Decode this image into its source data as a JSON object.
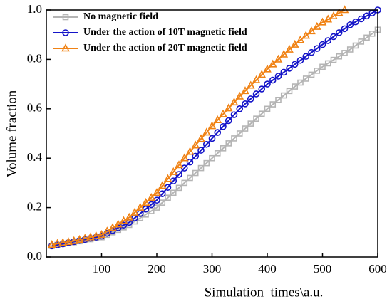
{
  "chart_data": {
    "type": "line",
    "xlabel": "Simulation  times\\a.u.",
    "ylabel": "Volume fraction",
    "x": [
      10,
      20,
      30,
      40,
      50,
      60,
      70,
      80,
      90,
      100,
      110,
      120,
      130,
      140,
      150,
      160,
      170,
      180,
      190,
      200,
      210,
      220,
      230,
      240,
      250,
      260,
      270,
      280,
      290,
      300,
      310,
      320,
      330,
      340,
      350,
      360,
      370,
      380,
      390,
      400,
      410,
      420,
      430,
      440,
      450,
      460,
      470,
      480,
      490,
      500,
      510,
      520,
      530,
      540,
      550,
      560,
      570,
      580,
      590,
      600
    ],
    "series": [
      {
        "name": "No magnetic field",
        "color": "#b4b4b4",
        "marker": "square",
        "values": [
          0.045,
          0.049,
          0.053,
          0.057,
          0.06,
          0.064,
          0.068,
          0.072,
          0.076,
          0.08,
          0.09,
          0.1,
          0.11,
          0.12,
          0.13,
          0.144,
          0.158,
          0.172,
          0.186,
          0.2,
          0.22,
          0.24,
          0.26,
          0.28,
          0.3,
          0.32,
          0.34,
          0.36,
          0.38,
          0.4,
          0.42,
          0.44,
          0.46,
          0.48,
          0.5,
          0.52,
          0.54,
          0.56,
          0.58,
          0.6,
          0.618,
          0.636,
          0.654,
          0.672,
          0.69,
          0.706,
          0.722,
          0.738,
          0.754,
          0.77,
          0.784,
          0.798,
          0.812,
          0.826,
          0.84,
          0.856,
          0.872,
          0.888,
          0.904,
          0.92
        ]
      },
      {
        "name": "Under the action of 10T magnetic field",
        "color": "#1414c8",
        "marker": "circle",
        "values": [
          0.045,
          0.049,
          0.053,
          0.058,
          0.062,
          0.067,
          0.071,
          0.076,
          0.08,
          0.085,
          0.096,
          0.107,
          0.118,
          0.129,
          0.14,
          0.158,
          0.176,
          0.194,
          0.212,
          0.23,
          0.256,
          0.282,
          0.308,
          0.334,
          0.36,
          0.384,
          0.408,
          0.432,
          0.456,
          0.48,
          0.504,
          0.528,
          0.552,
          0.576,
          0.6,
          0.62,
          0.64,
          0.66,
          0.68,
          0.7,
          0.716,
          0.732,
          0.748,
          0.764,
          0.78,
          0.796,
          0.812,
          0.828,
          0.844,
          0.86,
          0.876,
          0.892,
          0.908,
          0.924,
          0.94,
          0.952,
          0.964,
          0.976,
          0.988,
          1.0
        ]
      },
      {
        "name": "Under the action of 20T magnetic field",
        "color": "#f08214",
        "marker": "triangle",
        "values": [
          0.05,
          0.054,
          0.058,
          0.061,
          0.065,
          0.07,
          0.075,
          0.08,
          0.085,
          0.09,
          0.104,
          0.118,
          0.132,
          0.146,
          0.16,
          0.18,
          0.2,
          0.22,
          0.24,
          0.26,
          0.288,
          0.316,
          0.344,
          0.372,
          0.4,
          0.426,
          0.452,
          0.478,
          0.504,
          0.53,
          0.554,
          0.578,
          0.602,
          0.626,
          0.65,
          0.672,
          0.694,
          0.716,
          0.738,
          0.76,
          0.78,
          0.8,
          0.82,
          0.84,
          0.86,
          0.878,
          0.896,
          0.914,
          0.932,
          0.95,
          0.962,
          0.975,
          0.988,
          1.0,
          null,
          null,
          null,
          null,
          null,
          null
        ]
      }
    ],
    "xlim": [
      0,
      600
    ],
    "xticks": [
      100,
      200,
      300,
      400,
      500,
      600
    ],
    "ylim": [
      0,
      1
    ],
    "yticks": [
      {
        "value": 0,
        "label": "0.0"
      },
      0.2,
      0.4,
      0.6,
      0.8,
      {
        "value": 1,
        "label": "1.0"
      }
    ],
    "grid": false,
    "legend": "upper left"
  }
}
